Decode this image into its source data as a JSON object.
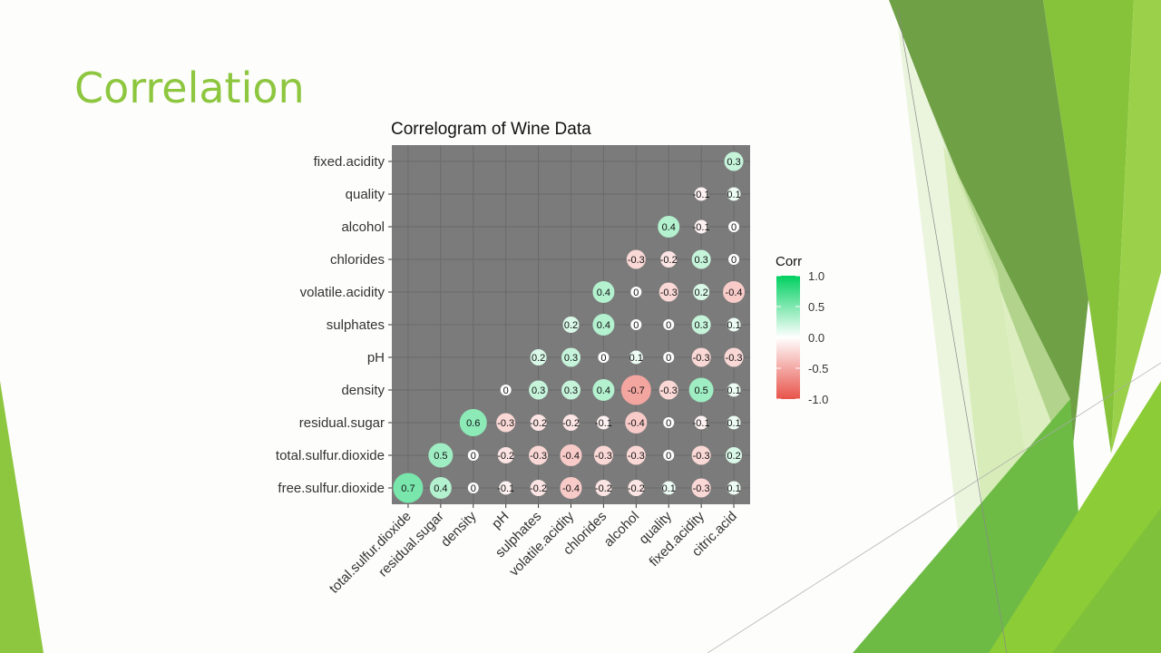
{
  "slide": {
    "title": "Correlation"
  },
  "chart_data": {
    "type": "heatmap",
    "title": "Correlogram of Wine Data",
    "x_labels": [
      "total.sulfur.dioxide",
      "residual.sugar",
      "density",
      "pH",
      "sulphates",
      "volatile.acidity",
      "chlorides",
      "alcohol",
      "quality",
      "fixed.acidity",
      "citric.acid"
    ],
    "y_labels": [
      "fixed.acidity",
      "quality",
      "alcohol",
      "chlorides",
      "volatile.acidity",
      "sulphates",
      "pH",
      "density",
      "residual.sugar",
      "total.sulfur.dioxide",
      "free.sulfur.dioxide"
    ],
    "values": [
      [
        null,
        null,
        null,
        null,
        null,
        null,
        null,
        null,
        null,
        null,
        0.3
      ],
      [
        null,
        null,
        null,
        null,
        null,
        null,
        null,
        null,
        null,
        -0.1,
        0.1
      ],
      [
        null,
        null,
        null,
        null,
        null,
        null,
        null,
        null,
        0.4,
        -0.1,
        0
      ],
      [
        null,
        null,
        null,
        null,
        null,
        null,
        null,
        -0.3,
        -0.2,
        0.3,
        0
      ],
      [
        null,
        null,
        null,
        null,
        null,
        null,
        0.4,
        0,
        -0.3,
        0.2,
        -0.4
      ],
      [
        null,
        null,
        null,
        null,
        null,
        0.2,
        0.4,
        0,
        0,
        0.3,
        0.1
      ],
      [
        null,
        null,
        null,
        null,
        0.2,
        0.3,
        0,
        0.1,
        0,
        -0.3,
        -0.3
      ],
      [
        null,
        null,
        null,
        0,
        0.3,
        0.3,
        0.4,
        -0.7,
        -0.3,
        0.5,
        0.1
      ],
      [
        null,
        null,
        0.6,
        -0.3,
        -0.2,
        -0.2,
        -0.1,
        -0.4,
        0,
        -0.1,
        0.1
      ],
      [
        null,
        0.5,
        0,
        -0.2,
        -0.3,
        -0.4,
        -0.3,
        -0.3,
        0,
        -0.3,
        0.2
      ],
      [
        0.7,
        0.4,
        0,
        -0.1,
        -0.2,
        -0.4,
        -0.2,
        -0.2,
        0.1,
        -0.3,
        0.1
      ]
    ],
    "legend": {
      "title": "Corr",
      "ticks": [
        "1.0",
        "0.5",
        "0.0",
        "-0.5",
        "-1.0"
      ],
      "tick_values": [
        1,
        0.5,
        0,
        -0.5,
        -1
      ],
      "placement": "right"
    },
    "colors": {
      "low": "#e8534a",
      "mid": "#ffffff",
      "high": "#00d060",
      "panel": "#7b7b7b",
      "grid": "#6a6a6a"
    },
    "range": [
      -1,
      1
    ]
  }
}
